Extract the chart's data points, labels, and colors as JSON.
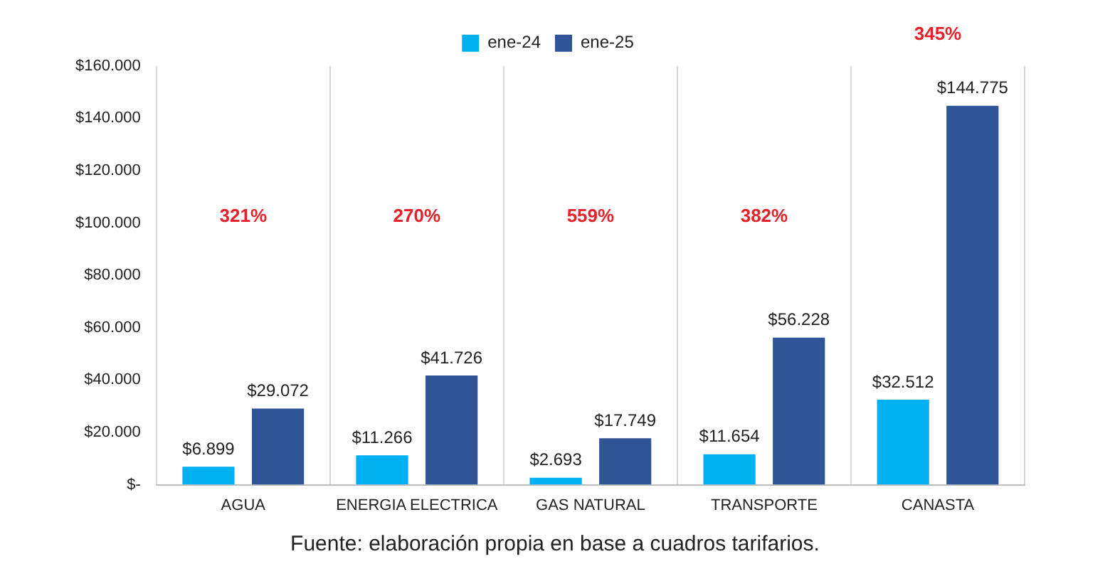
{
  "chart_data": {
    "type": "bar",
    "categories": [
      "AGUA",
      "ENERGIA ELECTRICA",
      "GAS NATURAL",
      "TRANSPORTE",
      "CANASTA"
    ],
    "series": [
      {
        "name": "ene-24",
        "color": "#00b0f0",
        "values": [
          6899,
          11266,
          2693,
          11654,
          32512
        ],
        "value_labels": [
          "$6.899",
          "$11.266",
          "$2.693",
          "$11.654",
          "$32.512"
        ]
      },
      {
        "name": "ene-25",
        "color": "#2f5597",
        "values": [
          29072,
          41726,
          17749,
          56228,
          144775
        ],
        "value_labels": [
          "$29.072",
          "$41.726",
          "$17.749",
          "$56.228",
          "$144.775"
        ]
      }
    ],
    "ylim": [
      0,
      160000
    ],
    "yticks": [
      {
        "value": 0,
        "label": "$-"
      },
      {
        "value": 20000,
        "label": "$20.000"
      },
      {
        "value": 40000,
        "label": "$40.000"
      },
      {
        "value": 60000,
        "label": "$60.000"
      },
      {
        "value": 80000,
        "label": "$80.000"
      },
      {
        "value": 100000,
        "label": "$100.000"
      },
      {
        "value": 120000,
        "label": "$120.000"
      },
      {
        "value": 140000,
        "label": "$140.000"
      },
      {
        "value": 160000,
        "label": "$160.000"
      }
    ],
    "grid": "x",
    "legend": "top",
    "annotations": [
      "321%",
      "270%",
      "559%",
      "382%",
      "345%",
      "Fuente: elaboración propia en base a cuadros tarifarios."
    ]
  }
}
